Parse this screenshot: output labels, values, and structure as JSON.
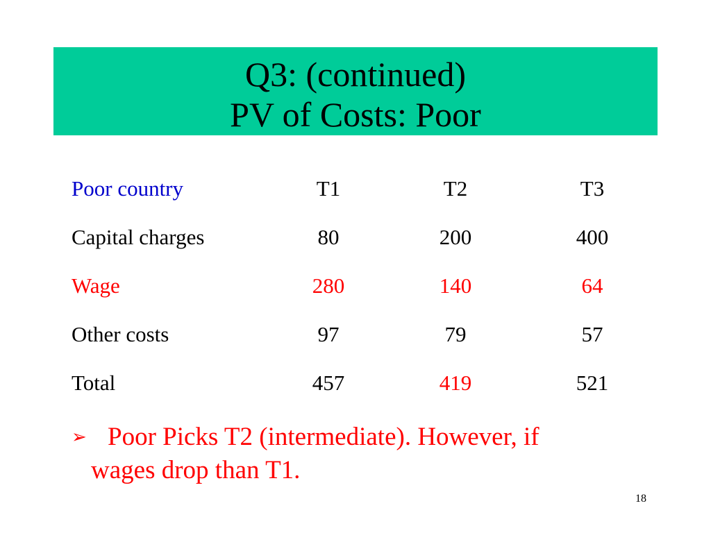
{
  "slide": {
    "title_line1": "Q3: (continued)",
    "title_line2": "PV of Costs: Poor",
    "page_number": "18",
    "title_background": "#00cc99"
  },
  "table": {
    "header": {
      "label": "Poor country",
      "t1": "T1",
      "t2": "T2",
      "t3": "T3"
    },
    "rows": [
      {
        "label": "Capital charges",
        "t1": "80",
        "t2": "200",
        "t3": "400"
      },
      {
        "label": "Wage",
        "t1": "280",
        "t2": "140",
        "t3": "64"
      },
      {
        "label": "Other costs",
        "t1": "97",
        "t2": "79",
        "t3": "57"
      },
      {
        "label": "Total",
        "t1": "457",
        "t2": "419",
        "t3": "521"
      }
    ]
  },
  "bullet": {
    "line1": "Poor Picks T2 (intermediate). However, if",
    "line2": "wages drop than T1."
  },
  "colors": {
    "header_label": "#0000cc",
    "highlight": "#ff0000",
    "text": "#000000"
  }
}
